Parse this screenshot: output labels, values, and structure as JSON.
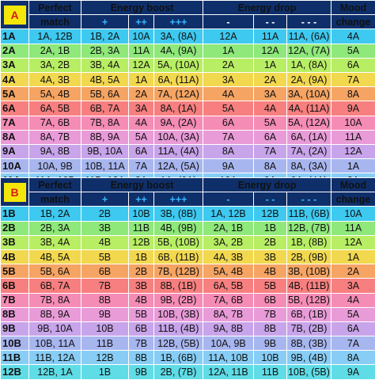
{
  "colors": {
    "header_bg": "#0e2f6a",
    "section_badge_bg": "#f5e60a",
    "section_badge_text": "#d81b1b",
    "plus_symbol_color": "#38b8ff",
    "row_colors": [
      "#3ec9f0",
      "#8ee87a",
      "#b8ee63",
      "#f2d84f",
      "#f5a463",
      "#f77f7f",
      "#f58cb6",
      "#e99bd8",
      "#c8a4ea",
      "#a8b6ef",
      "#87cdf5",
      "#5fdce6"
    ]
  },
  "section_a": {
    "badge": "A",
    "headers": {
      "perfect_line1": "Perfect",
      "perfect_line2": "match",
      "boost": "Energy boost",
      "drop": "Energy drop",
      "mood_line1": "Mood",
      "mood_line2": "change"
    },
    "symbols": [
      "+",
      "++",
      "+++",
      "-",
      "- -",
      "- - -"
    ],
    "rows": [
      [
        "1A",
        "1A, 12B",
        "1B, 2A",
        "10A",
        "3A, (8A)",
        "12A",
        "11A",
        "11A, (6A)",
        "4A"
      ],
      [
        "2A",
        "2A, 1B",
        "2B, 3A",
        "11A",
        "4A, (9A)",
        "1A",
        "12A",
        "12A, (7A)",
        "5A"
      ],
      [
        "3A",
        "3A, 2B",
        "3B, 4A",
        "12A",
        "5A, (10A)",
        "2A",
        "1A",
        "1A, (8A)",
        "6A"
      ],
      [
        "4A",
        "4A, 3B",
        "4B, 5A",
        "1A",
        "6A, (11A)",
        "3A",
        "2A",
        "2A, (9A)",
        "7A"
      ],
      [
        "5A",
        "5A, 4B",
        "5B, 6A",
        "2A",
        "7A, (12A)",
        "4A",
        "3A",
        "3A, (10A)",
        "8A"
      ],
      [
        "6A",
        "6A, 5B",
        "6B, 7A",
        "3A",
        "8A, (1A)",
        "5A",
        "4A",
        "4A, (11A)",
        "9A"
      ],
      [
        "7A",
        "7A, 6B",
        "7B, 8A",
        "4A",
        "9A, (2A)",
        "6A",
        "5A",
        "5A, (12A)",
        "10A"
      ],
      [
        "8A",
        "8A, 7B",
        "8B, 9A",
        "5A",
        "10A, (3A)",
        "7A",
        "6A",
        "6A, (1A)",
        "11A"
      ],
      [
        "9A",
        "9A, 8B",
        "9B, 10A",
        "6A",
        "11A, (4A)",
        "8A",
        "7A",
        "7A, (2A)",
        "12A"
      ],
      [
        "10A",
        "10A, 9B",
        "10B, 11A",
        "7A",
        "12A, (5A)",
        "9A",
        "8A",
        "8A, (3A)",
        "1A"
      ],
      [
        "11A",
        "11A, 10B",
        "11B, 12A",
        "8A",
        "1A, (6A)",
        "10A",
        "9A",
        "9A, (4A)",
        "2A"
      ],
      [
        "12A",
        "12A, 11B",
        "12B, 1A",
        "9A",
        "2A, (7A)",
        "11A",
        "10A",
        "10A, (5A)",
        "3A"
      ]
    ]
  },
  "section_b": {
    "badge": "B",
    "headers": {
      "perfect_line1": "Perfect",
      "perfect_line2": "match",
      "boost": "Energy boost",
      "drop": "Energy drop",
      "mood_line1": "Mood",
      "mood_line2": "change"
    },
    "symbols": [
      "+",
      "++",
      "+++",
      "-",
      "- -",
      "- - -"
    ],
    "rows": [
      [
        "1B",
        "1B, 2A",
        "2B",
        "10B",
        "3B, (8B)",
        "1A, 12B",
        "12B",
        "11B, (6B)",
        "10A"
      ],
      [
        "2B",
        "2B, 3A",
        "3B",
        "11B",
        "4B, (9B)",
        "2A, 1B",
        "1B",
        "12B, (7B)",
        "11A"
      ],
      [
        "3B",
        "3B, 4A",
        "4B",
        "12B",
        "5B, (10B)",
        "3A, 2B",
        "2B",
        "1B, (8B)",
        "12A"
      ],
      [
        "4B",
        "4B, 5A",
        "5B",
        "1B",
        "6B, (11B)",
        "4A, 3B",
        "3B",
        "2B, (9B)",
        "1A"
      ],
      [
        "5B",
        "5B, 6A",
        "6B",
        "2B",
        "7B, (12B)",
        "5A, 4B",
        "4B",
        "3B, (10B)",
        "2A"
      ],
      [
        "6B",
        "6B, 7A",
        "7B",
        "3B",
        "8B, (1B)",
        "6A, 5B",
        "5B",
        "4B, (11B)",
        "3A"
      ],
      [
        "7B",
        "7B, 8A",
        "8B",
        "4B",
        "9B, (2B)",
        "7A, 6B",
        "6B",
        "5B, (12B)",
        "4A"
      ],
      [
        "8B",
        "8B, 9A",
        "9B",
        "5B",
        "10B, (3B)",
        "8A, 7B",
        "7B",
        "6B, (1B)",
        "5A"
      ],
      [
        "9B",
        "9B, 10A",
        "10B",
        "6B",
        "11B, (4B)",
        "9A, 8B",
        "8B",
        "7B, (2B)",
        "6A"
      ],
      [
        "10B",
        "10B, 11A",
        "11B",
        "7B",
        "12B, (5B)",
        "10A, 9B",
        "9B",
        "8B, (3B)",
        "7A"
      ],
      [
        "11B",
        "11B, 12A",
        "12B",
        "8B",
        "1B, (6B)",
        "11A, 10B",
        "10B",
        "9B, (4B)",
        "8A"
      ],
      [
        "12B",
        "12B, 1A",
        "1B",
        "9B",
        "2B, (7B)",
        "12A, 11B",
        "11B",
        "10B, (5B)",
        "9A"
      ]
    ]
  }
}
